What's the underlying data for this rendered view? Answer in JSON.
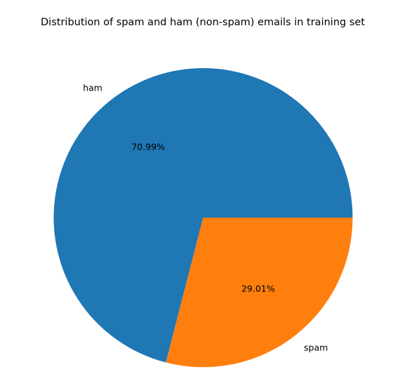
{
  "chart_data": {
    "type": "pie",
    "title": "Distribution of spam and ham (non-spam) emails in training set",
    "categories": [
      "ham",
      "spam"
    ],
    "values": [
      70.99,
      29.01
    ],
    "percent_labels": [
      "70.99%",
      "29.01%"
    ],
    "colors": [
      "#1f77b4",
      "#ff7f0e"
    ],
    "start_angle_deg": 0,
    "direction": "counterclockwise",
    "legend": "none"
  }
}
